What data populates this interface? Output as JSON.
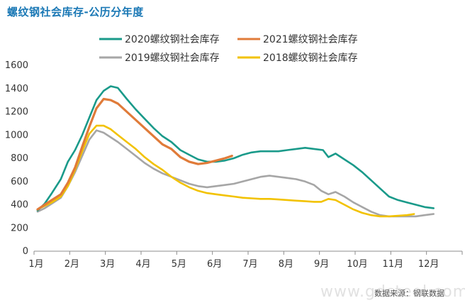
{
  "page": {
    "title": "螺纹钢社会库存-公历分年度",
    "source": "数据来源：钢联数据",
    "watermark": "www.gdsteel.com"
  },
  "chart_data": {
    "type": "line",
    "title": "螺纹钢社会库存-公历分年度",
    "xlabel": "",
    "ylabel": "",
    "ylim": [
      0,
      1600
    ],
    "yticks": [
      0,
      200,
      400,
      600,
      800,
      1000,
      1200,
      1400,
      1600
    ],
    "x_range": [
      1,
      13
    ],
    "x_tick_labels": [
      "1月",
      "2月",
      "3月",
      "4月",
      "5月",
      "6月",
      "7月",
      "8月",
      "9月",
      "10月",
      "11月",
      "12月"
    ],
    "grid": false,
    "legend_position": "top",
    "series": [
      {
        "name": "2020螺纹钢社会库存",
        "color": "#1a9a8a",
        "points": [
          [
            1.1,
            350
          ],
          [
            1.3,
            410
          ],
          [
            1.5,
            500
          ],
          [
            1.75,
            620
          ],
          [
            1.95,
            770
          ],
          [
            2.15,
            870
          ],
          [
            2.35,
            1000
          ],
          [
            2.55,
            1150
          ],
          [
            2.75,
            1300
          ],
          [
            2.95,
            1380
          ],
          [
            3.15,
            1420
          ],
          [
            3.35,
            1405
          ],
          [
            3.6,
            1310
          ],
          [
            3.85,
            1220
          ],
          [
            4.1,
            1140
          ],
          [
            4.35,
            1060
          ],
          [
            4.6,
            990
          ],
          [
            4.85,
            940
          ],
          [
            5.1,
            870
          ],
          [
            5.35,
            830
          ],
          [
            5.6,
            790
          ],
          [
            5.85,
            770
          ],
          [
            6.1,
            770
          ],
          [
            6.35,
            780
          ],
          [
            6.6,
            800
          ],
          [
            6.85,
            830
          ],
          [
            7.1,
            850
          ],
          [
            7.35,
            860
          ],
          [
            7.6,
            860
          ],
          [
            7.85,
            860
          ],
          [
            8.1,
            870
          ],
          [
            8.35,
            880
          ],
          [
            8.6,
            890
          ],
          [
            8.85,
            880
          ],
          [
            9.1,
            870
          ],
          [
            9.25,
            810
          ],
          [
            9.45,
            840
          ],
          [
            9.7,
            790
          ],
          [
            9.95,
            740
          ],
          [
            10.2,
            680
          ],
          [
            10.45,
            610
          ],
          [
            10.7,
            540
          ],
          [
            10.95,
            470
          ],
          [
            11.2,
            440
          ],
          [
            11.45,
            420
          ],
          [
            11.7,
            400
          ],
          [
            11.95,
            380
          ],
          [
            12.2,
            370
          ]
        ]
      },
      {
        "name": "2021螺纹钢社会库存",
        "color": "#e07b39",
        "points": [
          [
            1.1,
            360
          ],
          [
            1.3,
            400
          ],
          [
            1.5,
            440
          ],
          [
            1.75,
            490
          ],
          [
            1.95,
            590
          ],
          [
            2.15,
            720
          ],
          [
            2.35,
            900
          ],
          [
            2.55,
            1070
          ],
          [
            2.75,
            1230
          ],
          [
            2.95,
            1310
          ],
          [
            3.15,
            1300
          ],
          [
            3.35,
            1270
          ],
          [
            3.6,
            1200
          ],
          [
            3.85,
            1130
          ],
          [
            4.1,
            1060
          ],
          [
            4.35,
            990
          ],
          [
            4.6,
            920
          ],
          [
            4.85,
            880
          ],
          [
            5.1,
            810
          ],
          [
            5.35,
            770
          ],
          [
            5.6,
            750
          ],
          [
            5.85,
            760
          ],
          [
            6.1,
            780
          ],
          [
            6.35,
            800
          ],
          [
            6.55,
            820
          ]
        ]
      },
      {
        "name": "2019螺纹钢社会库存",
        "color": "#a6a6a6",
        "points": [
          [
            1.1,
            340
          ],
          [
            1.3,
            370
          ],
          [
            1.5,
            410
          ],
          [
            1.75,
            460
          ],
          [
            1.95,
            560
          ],
          [
            2.15,
            680
          ],
          [
            2.35,
            820
          ],
          [
            2.55,
            960
          ],
          [
            2.75,
            1040
          ],
          [
            2.95,
            1020
          ],
          [
            3.15,
            980
          ],
          [
            3.35,
            940
          ],
          [
            3.6,
            880
          ],
          [
            3.85,
            820
          ],
          [
            4.1,
            760
          ],
          [
            4.35,
            710
          ],
          [
            4.6,
            670
          ],
          [
            4.85,
            640
          ],
          [
            5.1,
            610
          ],
          [
            5.35,
            580
          ],
          [
            5.6,
            560
          ],
          [
            5.85,
            550
          ],
          [
            6.1,
            560
          ],
          [
            6.35,
            570
          ],
          [
            6.6,
            580
          ],
          [
            6.85,
            600
          ],
          [
            7.1,
            620
          ],
          [
            7.35,
            640
          ],
          [
            7.6,
            650
          ],
          [
            7.85,
            640
          ],
          [
            8.1,
            630
          ],
          [
            8.35,
            620
          ],
          [
            8.6,
            600
          ],
          [
            8.85,
            570
          ],
          [
            9.05,
            520
          ],
          [
            9.25,
            490
          ],
          [
            9.45,
            510
          ],
          [
            9.7,
            470
          ],
          [
            9.95,
            420
          ],
          [
            10.2,
            380
          ],
          [
            10.45,
            340
          ],
          [
            10.7,
            310
          ],
          [
            10.95,
            300
          ],
          [
            11.2,
            300
          ],
          [
            11.45,
            300
          ],
          [
            11.7,
            300
          ],
          [
            11.95,
            310
          ],
          [
            12.2,
            320
          ]
        ]
      },
      {
        "name": "2018螺纹钢社会库存",
        "color": "#f2c200",
        "points": [
          [
            1.1,
            360
          ],
          [
            1.3,
            390
          ],
          [
            1.5,
            420
          ],
          [
            1.75,
            470
          ],
          [
            1.95,
            560
          ],
          [
            2.15,
            700
          ],
          [
            2.35,
            860
          ],
          [
            2.55,
            1010
          ],
          [
            2.75,
            1080
          ],
          [
            2.95,
            1080
          ],
          [
            3.15,
            1050
          ],
          [
            3.35,
            1000
          ],
          [
            3.6,
            940
          ],
          [
            3.85,
            880
          ],
          [
            4.1,
            810
          ],
          [
            4.35,
            750
          ],
          [
            4.6,
            700
          ],
          [
            4.85,
            640
          ],
          [
            5.1,
            590
          ],
          [
            5.35,
            550
          ],
          [
            5.6,
            520
          ],
          [
            5.85,
            500
          ],
          [
            6.1,
            490
          ],
          [
            6.35,
            480
          ],
          [
            6.6,
            470
          ],
          [
            6.85,
            460
          ],
          [
            7.1,
            455
          ],
          [
            7.35,
            450
          ],
          [
            7.6,
            450
          ],
          [
            7.85,
            445
          ],
          [
            8.1,
            440
          ],
          [
            8.35,
            435
          ],
          [
            8.6,
            430
          ],
          [
            8.85,
            425
          ],
          [
            9.05,
            425
          ],
          [
            9.25,
            450
          ],
          [
            9.45,
            440
          ],
          [
            9.7,
            400
          ],
          [
            9.95,
            360
          ],
          [
            10.2,
            330
          ],
          [
            10.45,
            310
          ],
          [
            10.7,
            300
          ],
          [
            10.95,
            300
          ],
          [
            11.2,
            305
          ],
          [
            11.45,
            310
          ],
          [
            11.65,
            320
          ]
        ]
      }
    ]
  }
}
